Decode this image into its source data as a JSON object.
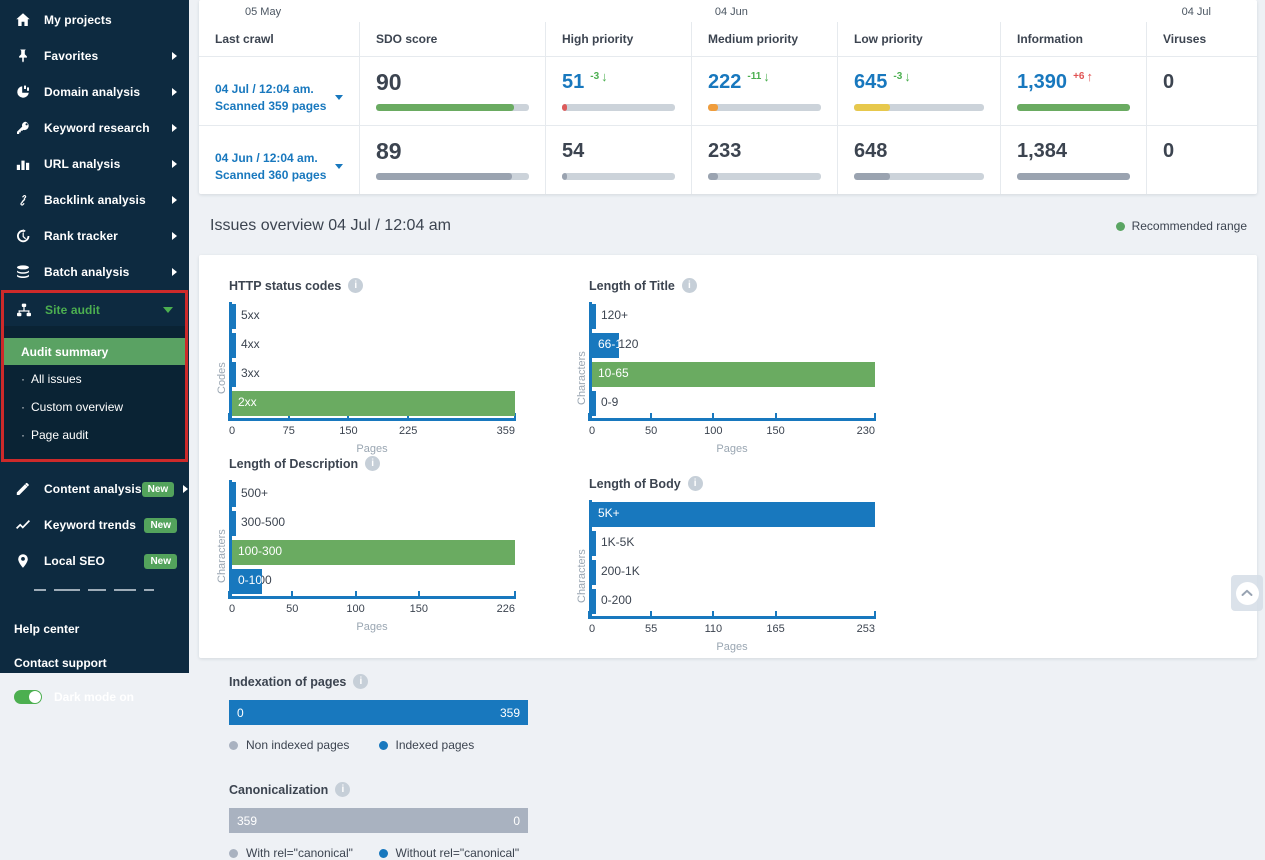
{
  "sidebar": {
    "items": [
      {
        "label": "My projects",
        "icon": "home-icon",
        "arrow": false
      },
      {
        "label": "Favorites",
        "icon": "pin-icon",
        "arrow": true
      },
      {
        "label": "Domain analysis",
        "icon": "domain-analysis-icon",
        "arrow": true
      },
      {
        "label": "Keyword research",
        "icon": "key-icon",
        "arrow": true
      },
      {
        "label": "URL analysis",
        "icon": "bar-chart-icon",
        "arrow": true
      },
      {
        "label": "Backlink analysis",
        "icon": "link-icon",
        "arrow": true
      },
      {
        "label": "Rank tracker",
        "icon": "history-icon",
        "arrow": true
      },
      {
        "label": "Batch analysis",
        "icon": "stack-icon",
        "arrow": true
      }
    ],
    "site_audit": {
      "label": "Site audit",
      "icon": "sitemap-icon",
      "expanded": true,
      "submenu": [
        {
          "label": "Audit summary",
          "active": true
        },
        {
          "label": "All issues",
          "active": false
        },
        {
          "label": "Custom overview",
          "active": false
        },
        {
          "label": "Page audit",
          "active": false
        }
      ]
    },
    "lower_items": [
      {
        "label": "Content analysis",
        "icon": "pencil-icon",
        "badge": "New",
        "arrow": true
      },
      {
        "label": "Keyword trends",
        "icon": "trend-icon",
        "badge": "New",
        "arrow": false
      },
      {
        "label": "Local SEO",
        "icon": "location-icon",
        "badge": "New",
        "arrow": false
      }
    ],
    "footer_links": [
      "Help center",
      "Contact support"
    ],
    "dark_mode_label": "Dark mode on"
  },
  "crawl_table": {
    "timeline": [
      "05 May",
      "04 Jun",
      "04 Jul"
    ],
    "columns": [
      "Last crawl",
      "SDO score",
      "High priority",
      "Medium priority",
      "Low priority",
      "Information",
      "Viruses"
    ],
    "rows": [
      {
        "date": "04 Jul / 12:04 am.",
        "scanned": "Scanned 359 pages",
        "link_style": "blue",
        "metrics": [
          {
            "value": "90",
            "pct": 90,
            "bar_color": "#6aab61",
            "value_color": "dark",
            "size": "xl"
          },
          {
            "value": "51",
            "change": "-3",
            "arrow": "down",
            "change_color": "green",
            "pct": 4,
            "bar_color": "#dd5b5b",
            "value_color": "blue"
          },
          {
            "value": "222",
            "change": "-11",
            "arrow": "down",
            "change_color": "green",
            "pct": 9,
            "bar_color": "#f09d3c",
            "value_color": "blue"
          },
          {
            "value": "645",
            "change": "-3",
            "arrow": "down",
            "change_color": "green",
            "pct": 28,
            "bar_color": "#e7c84c",
            "value_color": "blue"
          },
          {
            "value": "1,390",
            "change": "+6",
            "arrow": "up",
            "change_color": "red",
            "pct": 100,
            "bar_color": "#6aab61",
            "value_color": "blue"
          },
          {
            "value": "0",
            "pct": null,
            "value_color": "dark"
          }
        ]
      },
      {
        "date": "04 Jun / 12:04 am.",
        "scanned": "Scanned 360 pages",
        "link_style": "blue",
        "metrics": [
          {
            "value": "89",
            "pct": 89,
            "bar_color": "#9aa3b0",
            "value_color": "dark",
            "size": "xl"
          },
          {
            "value": "54",
            "pct": 4,
            "bar_color": "#9aa3b0",
            "value_color": "dark"
          },
          {
            "value": "233",
            "pct": 9,
            "bar_color": "#9aa3b0",
            "value_color": "dark"
          },
          {
            "value": "648",
            "pct": 28,
            "bar_color": "#9aa3b0",
            "value_color": "dark"
          },
          {
            "value": "1,384",
            "pct": 100,
            "bar_color": "#9aa3b0",
            "value_color": "dark"
          },
          {
            "value": "0",
            "pct": null,
            "value_color": "dark"
          }
        ]
      }
    ]
  },
  "issues_overview": {
    "title": "Issues overview 04 Jul / 12:04 am",
    "legend_label": "Recommended range",
    "legend_color": "#5aa563"
  },
  "chart_data": [
    {
      "type": "bar",
      "orientation": "horizontal",
      "title": "HTTP status codes",
      "ylabel": "Codes",
      "xlabel": "Pages",
      "categories": [
        "5xx",
        "4xx",
        "3xx",
        "2xx"
      ],
      "values": [
        1,
        1,
        3,
        359
      ],
      "colors": [
        "#1878be",
        "#1878be",
        "#1878be",
        "#6aab61"
      ],
      "xticks": [
        0,
        75,
        150,
        225,
        359
      ],
      "xlim": [
        0,
        359
      ],
      "grid": false
    },
    {
      "type": "bar",
      "orientation": "horizontal",
      "title": "Length of Title",
      "ylabel": "Characters",
      "xlabel": "Pages",
      "categories": [
        "120+",
        "66-120",
        "10-65",
        "0-9"
      ],
      "values": [
        1,
        22,
        230,
        2
      ],
      "colors": [
        "#1878be",
        "#1878be",
        "#6aab61",
        "#1878be"
      ],
      "xticks": [
        0,
        50,
        100,
        150,
        230
      ],
      "xlim": [
        0,
        230
      ],
      "grid": false
    },
    {
      "type": "bar",
      "orientation": "horizontal",
      "title": "Length of Description",
      "ylabel": "Characters",
      "xlabel": "Pages",
      "categories": [
        "500+",
        "300-500",
        "100-300",
        "0-100"
      ],
      "values": [
        1,
        2,
        226,
        24
      ],
      "colors": [
        "#1878be",
        "#1878be",
        "#6aab61",
        "#1878be"
      ],
      "xticks": [
        0,
        50,
        100,
        150,
        226
      ],
      "xlim": [
        0,
        226
      ],
      "grid": false
    },
    {
      "type": "bar",
      "orientation": "horizontal",
      "title": "Length of Body",
      "ylabel": "Characters",
      "xlabel": "Pages",
      "categories": [
        "5K+",
        "1K-5K",
        "200-1K",
        "0-200"
      ],
      "values": [
        253,
        2,
        2,
        2
      ],
      "colors": [
        "#1878be",
        "#1878be",
        "#1878be",
        "#1878be"
      ],
      "xticks": [
        0,
        55,
        110,
        165,
        253
      ],
      "xlim": [
        0,
        253
      ],
      "grid": false
    },
    {
      "type": "bar",
      "subtype": "single-stacked",
      "title": "Indexation of pages",
      "segments": [
        {
          "label": "Non indexed pages",
          "value": 0,
          "color": "#a9b2c0"
        },
        {
          "label": "Indexed pages",
          "value": 359,
          "color": "#1878be"
        }
      ],
      "bar_color": "#1878be",
      "left_value": "0",
      "right_value": "359"
    },
    {
      "type": "bar",
      "subtype": "single-stacked",
      "title": "Canonicalization",
      "segments": [
        {
          "label": "With rel=\"canonical\"",
          "value": 359,
          "color": "#a9b2c0"
        },
        {
          "label": "Without rel=\"canonical\"",
          "value": 0,
          "color": "#1878be"
        }
      ],
      "bar_color": "#a9b2c0",
      "left_value": "359",
      "right_value": "0"
    }
  ]
}
